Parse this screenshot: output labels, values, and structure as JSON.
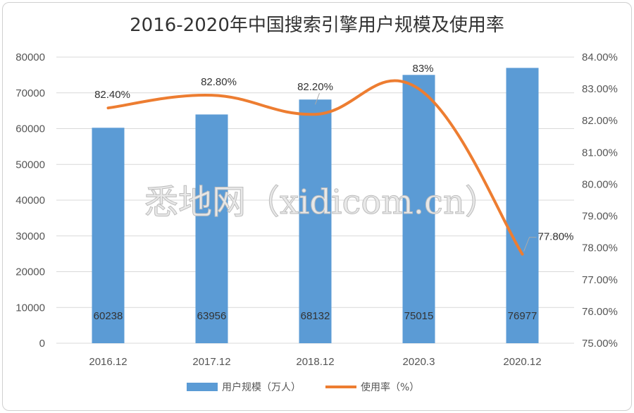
{
  "chart_data": {
    "type": "bar",
    "title": "2016-2020年中国搜索引擎用户规模及使用率",
    "categories": [
      "2016.12",
      "2017.12",
      "2018.12",
      "2020.3",
      "2020.12"
    ],
    "series": [
      {
        "name": "用户规模（万人）",
        "type": "bar",
        "axis": "left",
        "color": "#5b9bd5",
        "values": [
          60238,
          63956,
          68132,
          75015,
          76977
        ],
        "labels": [
          "60238",
          "63956",
          "68132",
          "75015",
          "76977"
        ]
      },
      {
        "name": "使用率（%）",
        "type": "line",
        "axis": "right",
        "color": "#ed7d31",
        "values": [
          82.4,
          82.8,
          82.2,
          83,
          77.8
        ],
        "labels": [
          "82.40%",
          "82.80%",
          "82.20%",
          "83%",
          "77.80%"
        ]
      }
    ],
    "y_left": {
      "lim": [
        0,
        80000
      ],
      "ticks": [
        0,
        10000,
        20000,
        30000,
        40000,
        50000,
        60000,
        70000,
        80000
      ]
    },
    "y_right": {
      "lim": [
        75,
        84
      ],
      "ticks": [
        "75.00%",
        "76.00%",
        "77.00%",
        "78.00%",
        "79.00%",
        "80.00%",
        "81.00%",
        "82.00%",
        "83.00%",
        "84.00%"
      ]
    },
    "grid": true,
    "legend": "bottom"
  },
  "watermark": "悉地网（xidicom.cn）"
}
